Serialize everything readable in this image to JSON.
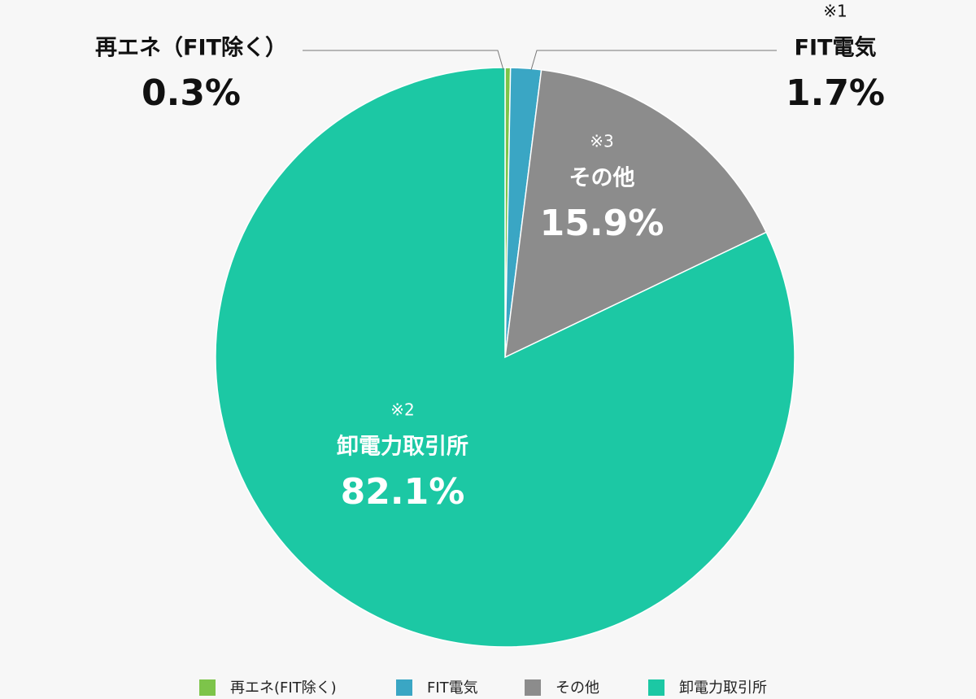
{
  "chart_data": {
    "type": "pie",
    "categories": [
      "再エネ(FIT除く)",
      "FIT電気",
      "その他",
      "卸電力取引所"
    ],
    "slice_labels": [
      "再エネ（FIT除く）",
      "FIT電気",
      "その他",
      "卸電力取引所"
    ],
    "notes": [
      null,
      "※1",
      "※3",
      "※2"
    ],
    "values": [
      0.3,
      1.7,
      15.9,
      82.1
    ],
    "value_labels": [
      "0.3%",
      "1.7%",
      "15.9%",
      "82.1%"
    ],
    "colors": [
      "#7dc44a",
      "#3aa6c4",
      "#8c8c8c",
      "#1cc8a4"
    ]
  }
}
